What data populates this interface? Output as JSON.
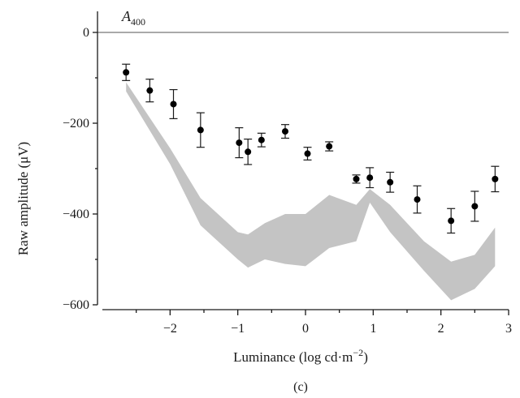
{
  "chart_data": {
    "type": "scatter",
    "panel_label": "(c)",
    "annotation": {
      "main": "A",
      "sub": "400"
    },
    "xlabel": "Luminance (log cd·m",
    "xlabel_sup": "−2",
    "xlabel_close": ")",
    "ylabel": "Raw amplitude (μV)",
    "xlim": [
      -3,
      3
    ],
    "ylim": [
      -600,
      20
    ],
    "x_ticks": [
      -2,
      -1,
      0,
      1,
      2,
      3
    ],
    "x_tick_labels": [
      "−2",
      "−1",
      "0",
      "1",
      "2",
      "3"
    ],
    "y_ticks": [
      0,
      -200,
      -400,
      -600
    ],
    "y_tick_labels": [
      "0",
      "−200",
      "−400",
      "−600"
    ],
    "reference_line": {
      "y": 0
    },
    "points": [
      {
        "x": -2.65,
        "y": -88,
        "err": 18
      },
      {
        "x": -2.3,
        "y": -128,
        "err": 25
      },
      {
        "x": -1.95,
        "y": -158,
        "err": 32
      },
      {
        "x": -1.55,
        "y": -215,
        "err": 38
      },
      {
        "x": -0.98,
        "y": -243,
        "err": 33
      },
      {
        "x": -0.85,
        "y": -263,
        "err": 28
      },
      {
        "x": -0.65,
        "y": -237,
        "err": 15
      },
      {
        "x": -0.3,
        "y": -218,
        "err": 15
      },
      {
        "x": 0.03,
        "y": -267,
        "err": 14
      },
      {
        "x": 0.35,
        "y": -251,
        "err": 10
      },
      {
        "x": 0.75,
        "y": -323,
        "err": 9
      },
      {
        "x": 0.95,
        "y": -320,
        "err": 22
      },
      {
        "x": 1.25,
        "y": -330,
        "err": 22
      },
      {
        "x": 1.65,
        "y": -368,
        "err": 30
      },
      {
        "x": 2.15,
        "y": -415,
        "err": 27
      },
      {
        "x": 2.5,
        "y": -383,
        "err": 33
      },
      {
        "x": 2.8,
        "y": -323,
        "err": 28
      }
    ],
    "band": {
      "x": [
        -2.65,
        -2.0,
        -1.55,
        -1.0,
        -0.85,
        -0.6,
        -0.3,
        0.0,
        0.35,
        0.75,
        0.95,
        1.25,
        1.75,
        2.15,
        2.5,
        2.8
      ],
      "upper": [
        -110,
        -255,
        -365,
        -440,
        -445,
        -420,
        -400,
        -400,
        -358,
        -380,
        -345,
        -380,
        -460,
        -505,
        -490,
        -430
      ],
      "lower": [
        -130,
        -290,
        -425,
        -500,
        -518,
        -500,
        -510,
        -515,
        -475,
        -460,
        -375,
        -440,
        -525,
        -590,
        -565,
        -515
      ]
    }
  }
}
